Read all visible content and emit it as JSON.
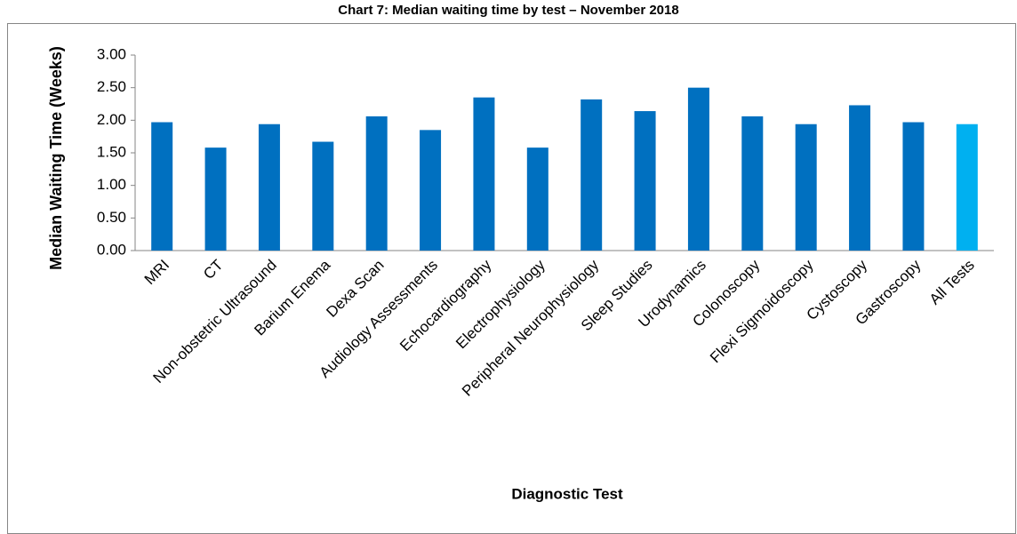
{
  "chart_data": {
    "type": "bar",
    "title": "Chart 7: Median waiting time by test – November 2018",
    "x_label": "Diagnostic Test",
    "y_label": "Median Waiting Time (Weeks)",
    "categories": [
      "MRI",
      "CT",
      "Non-obstetric Ultrasound",
      "Barium Enema",
      "Dexa Scan",
      "Audiology Assessments",
      "Echocardiography",
      "Electrophysiology",
      "Peripheral Neurophysiology",
      "Sleep Studies",
      "Urodynamics",
      "Colonoscopy",
      "Flexi Sigmoidoscopy",
      "Cystoscopy",
      "Gastroscopy",
      "All Tests"
    ],
    "values": [
      1.97,
      1.58,
      1.94,
      1.67,
      2.06,
      1.85,
      2.35,
      1.58,
      2.32,
      2.14,
      2.5,
      2.06,
      1.94,
      2.23,
      1.97,
      1.94
    ],
    "colors": [
      "#0070c0",
      "#0070c0",
      "#0070c0",
      "#0070c0",
      "#0070c0",
      "#0070c0",
      "#0070c0",
      "#0070c0",
      "#0070c0",
      "#0070c0",
      "#0070c0",
      "#0070c0",
      "#0070c0",
      "#0070c0",
      "#0070c0",
      "#00b0f0"
    ],
    "ylim": [
      0,
      3
    ],
    "yticks": [
      {
        "value": 0,
        "label": "0.00"
      },
      {
        "value": 0.5,
        "label": "0.50"
      },
      {
        "value": 1,
        "label": "1.00"
      },
      {
        "value": 1.5,
        "label": "1.50"
      },
      {
        "value": 2,
        "label": "2.00"
      },
      {
        "value": 2.5,
        "label": "2.50"
      },
      {
        "value": 3,
        "label": "3.00"
      }
    ],
    "grid": false
  }
}
